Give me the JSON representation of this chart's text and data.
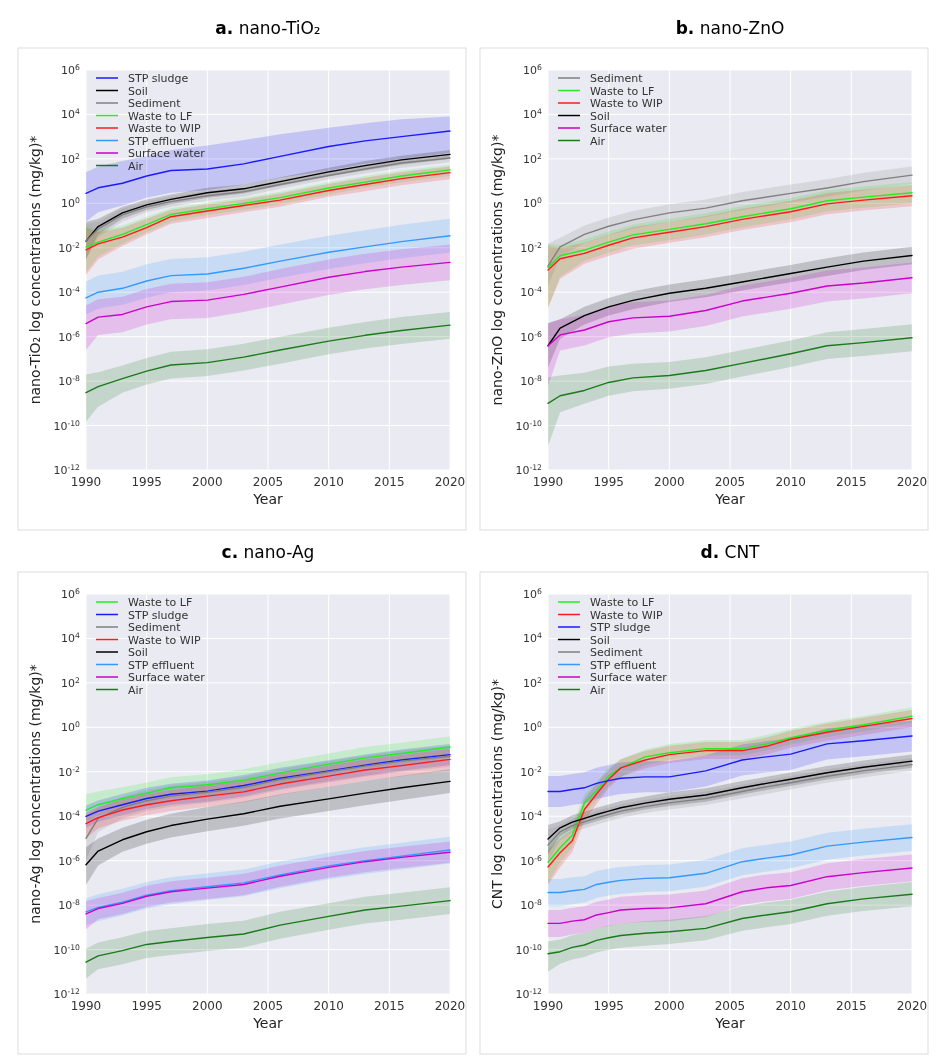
{
  "chart_data": [
    {
      "type": "line",
      "title": "a. nano-TiO₂",
      "xlabel": "Year",
      "ylabel": "nano-TiO₂  log concentrations (mg/kg)*",
      "log": true,
      "grid": true,
      "legend": "top left",
      "xlim": [
        1990,
        2020
      ],
      "xticks": [
        1990,
        1995,
        2000,
        2005,
        2010,
        2015,
        2020
      ],
      "ylim": [
        1e-12,
        1000000.0
      ],
      "yticks": [
        {
          "value": 1e-12,
          "label": "10$^{-12}$"
        },
        {
          "value": 1e-10,
          "label": "10$^{-10}$"
        },
        {
          "value": 1e-08,
          "label": "10$^{-8}$"
        },
        {
          "value": 1e-06,
          "label": "10$^{-6}$"
        },
        {
          "value": 0.0001,
          "label": "10$^{-4}$"
        },
        {
          "value": 0.01,
          "label": "10$^{-2}$"
        },
        {
          "value": 1,
          "label": "10$^{0}$"
        },
        {
          "value": 100,
          "label": "10$^{2}$"
        },
        {
          "value": 10000.0,
          "label": "10$^{4}$"
        },
        {
          "value": 1000000.0,
          "label": "10$^{6}$"
        }
      ],
      "x": [
        1990,
        1991,
        1993,
        1995,
        1997,
        2000,
        2003,
        2006,
        2010,
        2013,
        2016,
        2020
      ],
      "series": [
        {
          "name": "STP sludge",
          "color": "#1a1aff",
          "values": [
            2.8,
            5,
            8,
            17,
            30,
            35,
            60,
            130,
            360,
            650,
            1000,
            1800
          ],
          "lower": [
            0.15,
            0.4,
            0.8,
            1.8,
            3,
            4,
            7,
            14,
            30,
            60,
            100,
            190
          ],
          "upper": [
            25,
            45,
            80,
            130,
            250,
            400,
            700,
            1300,
            2500,
            4000,
            6000,
            8000
          ]
        },
        {
          "name": "Soil",
          "color": "#000000",
          "values": [
            0.02,
            0.09,
            0.37,
            0.85,
            1.5,
            3,
            4.5,
            9.5,
            26,
            50,
            90,
            160
          ],
          "lower": [
            0.003,
            0.04,
            0.2,
            0.5,
            0.9,
            1.8,
            2.8,
            6,
            16,
            30,
            55,
            100
          ],
          "upper": [
            0.15,
            0.2,
            0.7,
            1.5,
            2.5,
            5,
            7,
            15,
            40,
            80,
            140,
            250
          ]
        },
        {
          "name": "Sediment",
          "color": "#808080",
          "values": [
            0.02,
            0.07,
            0.3,
            0.7,
            1.2,
            2.2,
            3.3,
            7,
            18,
            35,
            65,
            110
          ],
          "lower": [
            0.003,
            0.03,
            0.15,
            0.4,
            0.7,
            1.3,
            2,
            4.5,
            12,
            22,
            40,
            70
          ],
          "upper": [
            0.12,
            0.15,
            0.6,
            1.2,
            2,
            3.5,
            5,
            11,
            28,
            55,
            100,
            170
          ]
        },
        {
          "name": "Waste to LF",
          "color": "#22ee22",
          "values": [
            0.011,
            0.018,
            0.04,
            0.11,
            0.32,
            0.57,
            1,
            1.8,
            4.9,
            9,
            17,
            32
          ],
          "lower": [
            0.0008,
            0.004,
            0.015,
            0.05,
            0.15,
            0.3,
            0.5,
            0.9,
            2.5,
            5,
            9,
            17
          ],
          "upper": [
            0.1,
            0.06,
            0.1,
            0.25,
            0.6,
            1.1,
            1.8,
            3.3,
            9,
            17,
            30,
            55
          ]
        },
        {
          "name": "Waste to WIP",
          "color": "#ff1a1a",
          "values": [
            0.008,
            0.015,
            0.03,
            0.08,
            0.25,
            0.45,
            0.8,
            1.4,
            3.8,
            7,
            13,
            24
          ],
          "lower": [
            0.0006,
            0.003,
            0.012,
            0.04,
            0.12,
            0.22,
            0.4,
            0.7,
            2,
            3.5,
            6.5,
            12
          ],
          "upper": [
            0.08,
            0.05,
            0.08,
            0.2,
            0.5,
            0.9,
            1.5,
            2.8,
            7.5,
            14,
            25,
            45
          ]
        },
        {
          "name": "STP effluent",
          "color": "#3399ff",
          "values": [
            5.5e-05,
            0.0001,
            0.00015,
            0.00032,
            0.00056,
            0.00066,
            0.0012,
            0.0025,
            0.0063,
            0.011,
            0.019,
            0.035
          ],
          "lower": [
            1e-05,
            1.8e-05,
            2.7e-05,
            5.7e-05,
            0.0001,
            0.00012,
            0.00021,
            0.00045,
            0.0011,
            0.002,
            0.0034,
            0.006
          ],
          "upper": [
            0.0003,
            0.00056,
            0.00084,
            0.0018,
            0.0031,
            0.0037,
            0.0067,
            0.014,
            0.035,
            0.062,
            0.11,
            0.2
          ]
        },
        {
          "name": "Surface water",
          "color": "#cc00cc",
          "values": [
            3.9e-06,
            7.6e-06,
            1e-05,
            2.2e-05,
            3.8e-05,
            4.4e-05,
            8e-05,
            0.00017,
            0.00047,
            0.00085,
            0.00135,
            0.0022
          ],
          "lower": [
            2.5e-07,
            1.2e-06,
            1.6e-06,
            3.5e-06,
            6e-06,
            7e-06,
            1.3e-05,
            2.7e-05,
            7.5e-05,
            0.000135,
            0.00021,
            0.00035
          ],
          "upper": [
            2.5e-05,
            4.8e-05,
            6.3e-05,
            0.00014,
            0.00024,
            0.00028,
            0.0005,
            0.0011,
            0.003,
            0.0054,
            0.0085,
            0.014
          ]
        },
        {
          "name": "Air",
          "color": "#1a7a1a",
          "values": [
            3e-09,
            5.6e-09,
            1.3e-08,
            2.8e-08,
            5.3e-08,
            6.8e-08,
            1.2e-07,
            2.5e-07,
            6.3e-07,
            1.15e-06,
            1.9e-06,
            3.3e-06
          ],
          "lower": [
            1.5e-10,
            7e-10,
            3e-09,
            7e-09,
            1.3e-08,
            1.7e-08,
            3e-08,
            6e-08,
            1.6e-07,
            2.9e-07,
            4.7e-07,
            8e-07
          ],
          "upper": [
            2e-08,
            2.5e-08,
            5e-08,
            1.1e-07,
            2.1e-07,
            2.7e-07,
            4.8e-07,
            1e-06,
            2.5e-06,
            4.6e-06,
            7.6e-06,
            1.3e-05
          ]
        }
      ]
    },
    {
      "type": "line",
      "title": "b. nano-ZnO",
      "xlabel": "Year",
      "ylabel": "nano-ZnO log concentrations (mg/kg)*",
      "log": true,
      "grid": true,
      "legend": "top left",
      "xlim": [
        1990,
        2020
      ],
      "xticks": [
        1990,
        1995,
        2000,
        2005,
        2010,
        2015,
        2020
      ],
      "ylim": [
        1e-12,
        1000000.0
      ],
      "yticks": [
        {
          "value": 1e-12,
          "label": "10$^{-12}$"
        },
        {
          "value": 1e-10,
          "label": "10$^{-10}$"
        },
        {
          "value": 1e-08,
          "label": "10$^{-8}$"
        },
        {
          "value": 1e-06,
          "label": "10$^{-6}$"
        },
        {
          "value": 0.0001,
          "label": "10$^{-4}$"
        },
        {
          "value": 0.01,
          "label": "10$^{-2}$"
        },
        {
          "value": 1,
          "label": "10$^{0}$"
        },
        {
          "value": 100,
          "label": "10$^{2}$"
        },
        {
          "value": 10000.0,
          "label": "10$^{4}$"
        },
        {
          "value": 1000000.0,
          "label": "10$^{6}$"
        }
      ],
      "x": [
        1990,
        1991,
        1993,
        1995,
        1997,
        2000,
        2003,
        2006,
        2010,
        2013,
        2016,
        2020
      ],
      "series": [
        {
          "name": "Sediment",
          "color": "#808080",
          "values": [
            0.0015,
            0.011,
            0.04,
            0.093,
            0.18,
            0.37,
            0.61,
            1.3,
            2.8,
            4.9,
            9.5,
            18.6
          ],
          "lower": [
            0.0002,
            0.004,
            0.016,
            0.037,
            0.072,
            0.15,
            0.24,
            0.5,
            1.1,
            2,
            3.8,
            7.5
          ],
          "upper": [
            0.015,
            0.028,
            0.1,
            0.23,
            0.45,
            0.9,
            1.5,
            3.2,
            7,
            12,
            24,
            45
          ]
        },
        {
          "name": "Waste to LF",
          "color": "#22ee22",
          "values": [
            0.0013,
            0.0044,
            0.0079,
            0.018,
            0.038,
            0.067,
            0.12,
            0.25,
            0.57,
            1.3,
            1.9,
            3
          ],
          "lower": [
            2e-05,
            0.0005,
            0.0026,
            0.006,
            0.013,
            0.022,
            0.04,
            0.083,
            0.19,
            0.43,
            0.63,
            1
          ],
          "upper": [
            0.015,
            0.013,
            0.024,
            0.054,
            0.11,
            0.2,
            0.36,
            0.75,
            1.7,
            3.9,
            5.7,
            9
          ]
        },
        {
          "name": "Waste to WIP",
          "color": "#ff1a1a",
          "values": [
            0.001,
            0.0032,
            0.0056,
            0.013,
            0.028,
            0.05,
            0.09,
            0.19,
            0.42,
            0.95,
            1.4,
            2.2
          ],
          "lower": [
            2e-05,
            0.0004,
            0.0019,
            0.0043,
            0.009,
            0.017,
            0.03,
            0.063,
            0.14,
            0.32,
            0.47,
            0.73
          ],
          "upper": [
            0.012,
            0.01,
            0.017,
            0.039,
            0.084,
            0.15,
            0.27,
            0.57,
            1.3,
            2.9,
            4.2,
            6.6
          ]
        },
        {
          "name": "Soil",
          "color": "#000000",
          "values": [
            3.9e-07,
            2.4e-06,
            8.9e-06,
            2.2e-05,
            4.3e-05,
            9e-05,
            0.00015,
            0.00029,
            0.0007,
            0.00135,
            0.0025,
            0.0045
          ],
          "lower": [
            4e-08,
            8e-07,
            3.5e-06,
            9e-06,
            1.7e-05,
            3.6e-05,
            6e-05,
            0.00012,
            0.00028,
            0.00054,
            0.001,
            0.0018
          ],
          "upper": [
            4e-06,
            6e-06,
            2.2e-05,
            5.5e-05,
            0.00011,
            0.00022,
            0.00038,
            0.00072,
            0.0017,
            0.0034,
            0.0062,
            0.011
          ]
        },
        {
          "name": "Surface water",
          "color": "#cc00cc",
          "values": [
            3.9e-07,
            1.2e-06,
            2e-06,
            4.7e-06,
            7e-06,
            8.3e-06,
            1.5e-05,
            4e-05,
            9e-05,
            0.00019,
            0.00026,
            0.00045
          ],
          "lower": [
            6e-09,
            2.4e-07,
            4e-07,
            9.4e-07,
            1.4e-06,
            1.7e-06,
            3e-06,
            8e-06,
            1.8e-05,
            3.8e-05,
            5.2e-05,
            9e-05
          ],
          "upper": [
            4e-06,
            6e-06,
            1e-05,
            2.4e-05,
            3.5e-05,
            4.2e-05,
            7.5e-05,
            0.0002,
            0.00045,
            0.00095,
            0.0013,
            0.0022
          ]
        },
        {
          "name": "Air",
          "color": "#1a7a1a",
          "values": [
            1e-09,
            2.2e-09,
            3.8e-09,
            8.7e-09,
            1.4e-08,
            1.8e-08,
            3e-08,
            6.3e-08,
            1.7e-07,
            3.9e-07,
            5.4e-07,
            8.9e-07
          ],
          "lower": [
            1.2e-11,
            4e-10,
            9.5e-10,
            2.2e-09,
            3.5e-09,
            4.5e-09,
            7.5e-09,
            1.6e-08,
            4.3e-08,
            1e-07,
            1.35e-07,
            2.2e-07
          ],
          "upper": [
            1.5e-08,
            1.8e-08,
            2.4e-08,
            4.5e-08,
            6e-08,
            7.2e-08,
            1.2e-07,
            2.5e-07,
            6.8e-07,
            1.6e-06,
            2.2e-06,
            3.6e-06
          ]
        }
      ]
    },
    {
      "type": "line",
      "title": "c. nano-Ag",
      "xlabel": "Year",
      "ylabel": "nano-Ag log concentrations (mg/kg)*",
      "log": true,
      "grid": true,
      "legend": "top left",
      "xlim": [
        1990,
        2020
      ],
      "xticks": [
        1990,
        1995,
        2000,
        2005,
        2010,
        2015,
        2020
      ],
      "ylim": [
        1e-12,
        1000000.0
      ],
      "yticks": [
        {
          "value": 1e-12,
          "label": "10$^{-12}$"
        },
        {
          "value": 1e-10,
          "label": "10$^{-10}$"
        },
        {
          "value": 1e-08,
          "label": "10$^{-8}$"
        },
        {
          "value": 1e-06,
          "label": "10$^{-6}$"
        },
        {
          "value": 0.0001,
          "label": "10$^{-4}$"
        },
        {
          "value": 0.01,
          "label": "10$^{-2}$"
        },
        {
          "value": 1,
          "label": "10$^{0}$"
        },
        {
          "value": 100,
          "label": "10$^{2}$"
        },
        {
          "value": 10000.0,
          "label": "10$^{4}$"
        },
        {
          "value": 1000000.0,
          "label": "10$^{6}$"
        }
      ],
      "x": [
        1990,
        1991,
        1993,
        1995,
        1997,
        2000,
        2003,
        2006,
        2010,
        2013,
        2016,
        2020
      ],
      "series": [
        {
          "name": "Waste to LF",
          "color": "#22ee22",
          "values": [
            0.00019,
            0.00033,
            0.00063,
            0.0011,
            0.0019,
            0.0026,
            0.0042,
            0.0089,
            0.022,
            0.042,
            0.066,
            0.13
          ],
          "lower": [
            6e-05,
            0.00011,
            0.00021,
            0.00037,
            0.00063,
            0.00087,
            0.0014,
            0.003,
            0.0073,
            0.014,
            0.022,
            0.043
          ],
          "upper": [
            0.001,
            0.0013,
            0.002,
            0.0033,
            0.0057,
            0.0078,
            0.013,
            0.027,
            0.066,
            0.13,
            0.2,
            0.39
          ]
        },
        {
          "name": "STP sludge",
          "color": "#1a1aff",
          "values": [
            9.8e-05,
            0.00017,
            0.00033,
            0.00063,
            0.00098,
            0.00135,
            0.0024,
            0.0051,
            0.011,
            0.02,
            0.034,
            0.059
          ],
          "lower": [
            3e-05,
            5.7e-05,
            0.00011,
            0.00021,
            0.00033,
            0.00045,
            0.0008,
            0.0017,
            0.0037,
            0.0067,
            0.011,
            0.02
          ],
          "upper": [
            0.0003,
            0.00051,
            0.001,
            0.0019,
            0.0029,
            0.004,
            0.0072,
            0.015,
            0.033,
            0.06,
            0.1,
            0.18
          ]
        },
        {
          "name": "Sediment",
          "color": "#808080",
          "values": [
            1e-05,
            8e-05,
            0.00025,
            0.0005,
            0.0008,
            0.0012,
            0.002,
            0.0045,
            0.01,
            0.018,
            0.03,
            0.05
          ],
          "lower": [
            1e-06,
            2e-05,
            8e-05,
            0.00017,
            0.00027,
            0.0004,
            0.00067,
            0.0015,
            0.0033,
            0.006,
            0.01,
            0.017
          ],
          "upper": [
            0.0001,
            0.00024,
            0.00075,
            0.0015,
            0.0024,
            0.0036,
            0.006,
            0.013,
            0.03,
            0.054,
            0.09,
            0.15
          ]
        },
        {
          "name": "Waste to WIP",
          "color": "#ff1a1a",
          "values": [
            4.6e-05,
            8.7e-05,
            0.00019,
            0.00033,
            0.0005,
            0.0008,
            0.00125,
            0.0028,
            0.0064,
            0.012,
            0.019,
            0.036
          ],
          "lower": [
            1e-05,
            2.9e-05,
            6.3e-05,
            0.00011,
            0.00017,
            0.00027,
            0.00042,
            0.00093,
            0.0021,
            0.004,
            0.0063,
            0.012
          ],
          "upper": [
            0.00014,
            0.00026,
            0.00057,
            0.001,
            0.0015,
            0.0024,
            0.0038,
            0.0084,
            0.019,
            0.036,
            0.057,
            0.11
          ]
        },
        {
          "name": "Soil",
          "color": "#000000",
          "values": [
            6.6e-07,
            2.7e-06,
            8.7e-06,
            2e-05,
            3.8e-05,
            7.4e-05,
            0.00013,
            0.00028,
            0.0006,
            0.0011,
            0.0019,
            0.0037
          ],
          "lower": [
            8e-08,
            6e-07,
            2.5e-06,
            5.7e-06,
            1.1e-05,
            2.1e-05,
            3.7e-05,
            8e-05,
            0.00017,
            0.00031,
            0.00054,
            0.0011
          ],
          "upper": [
            4e-06,
            1e-05,
            3e-05,
            7e-05,
            0.00013,
            0.00026,
            0.00046,
            0.00098,
            0.0021,
            0.0039,
            0.0067,
            0.013
          ]
        },
        {
          "name": "STP effluent",
          "color": "#3399ff",
          "values": [
            5e-09,
            7.8e-09,
            1.35e-08,
            2.8e-08,
            4.4e-08,
            6.7e-08,
            1e-07,
            2.3e-07,
            5.8e-07,
            1e-06,
            1.6e-06,
            3e-06
          ],
          "lower": [
            1.25e-09,
            1.9e-09,
            3.4e-09,
            7e-09,
            1.1e-08,
            1.7e-08,
            2.5e-08,
            5.7e-08,
            1.45e-07,
            2.5e-07,
            4e-07,
            7.5e-07
          ],
          "upper": [
            2e-08,
            3.1e-08,
            5.4e-08,
            1.1e-07,
            1.8e-07,
            2.7e-07,
            4e-07,
            9.2e-07,
            2.3e-06,
            4e-06,
            6.4e-06,
            1.2e-05
          ]
        },
        {
          "name": "Surface water",
          "color": "#cc00cc",
          "values": [
            4e-09,
            7e-09,
            1.2e-08,
            2.5e-08,
            4e-08,
            5.8e-08,
            8.5e-08,
            2e-07,
            5e-07,
            9e-07,
            1.4e-06,
            2.4e-06
          ],
          "lower": [
            8e-10,
            2.3e-09,
            4e-09,
            8.3e-09,
            1.3e-08,
            1.9e-08,
            2.8e-08,
            6.7e-08,
            1.7e-07,
            3e-07,
            4.7e-07,
            8e-07
          ],
          "upper": [
            1.5e-08,
            2.1e-08,
            3.6e-08,
            7.5e-08,
            1.2e-07,
            1.7e-07,
            2.6e-07,
            6e-07,
            1.5e-06,
            2.7e-06,
            4.2e-06,
            7.2e-06
          ]
        },
        {
          "name": "Air",
          "color": "#1a7a1a",
          "values": [
            2.7e-11,
            5.2e-11,
            8.9e-11,
            1.7e-10,
            2.3e-10,
            3.5e-10,
            5e-10,
            1.26e-09,
            3.1e-09,
            6e-09,
            9e-09,
            1.6e-08
          ],
          "lower": [
            5e-12,
            1.3e-11,
            2.2e-11,
            4.2e-11,
            5.7e-11,
            8.7e-11,
            1.25e-10,
            3.1e-10,
            7.7e-10,
            1.5e-09,
            2.2e-09,
            4e-09
          ],
          "upper": [
            1.1e-10,
            2.1e-10,
            3.6e-10,
            6.8e-10,
            9.2e-10,
            1.4e-09,
            2e-09,
            5e-09,
            1.2e-08,
            2.4e-08,
            3.6e-08,
            6.4e-08
          ]
        }
      ]
    },
    {
      "type": "line",
      "title": "d. CNT",
      "xlabel": "Year",
      "ylabel": "CNT  log concentrations (mg/kg)*",
      "log": true,
      "grid": true,
      "legend": "top left",
      "xlim": [
        1990,
        2020
      ],
      "xticks": [
        1990,
        1995,
        2000,
        2005,
        2010,
        2015,
        2020
      ],
      "ylim": [
        1e-12,
        1000000.0
      ],
      "yticks": [
        {
          "value": 1e-12,
          "label": "10$^{-12}$"
        },
        {
          "value": 1e-10,
          "label": "10$^{-10}$"
        },
        {
          "value": 1e-08,
          "label": "10$^{-8}$"
        },
        {
          "value": 1e-06,
          "label": "10$^{-6}$"
        },
        {
          "value": 0.0001,
          "label": "10$^{-4}$"
        },
        {
          "value": 0.01,
          "label": "10$^{-2}$"
        },
        {
          "value": 1,
          "label": "10$^{0}$"
        },
        {
          "value": 100,
          "label": "10$^{2}$"
        },
        {
          "value": 10000.0,
          "label": "10$^{4}$"
        },
        {
          "value": 1000000.0,
          "label": "10$^{6}$"
        }
      ],
      "x": [
        1990,
        1991,
        1992,
        1993,
        1994,
        1995,
        1996,
        1998,
        2000,
        2003,
        2006,
        2008,
        2010,
        2013,
        2016,
        2020
      ],
      "series": [
        {
          "name": "Waste to LF",
          "color": "#22ee22",
          "values": [
            8.5e-07,
            3.8e-06,
            1.4e-05,
            0.00039,
            0.0014,
            0.0065,
            0.015,
            0.047,
            0.072,
            0.11,
            0.11,
            0.18,
            0.34,
            0.74,
            1.3,
            3.2
          ],
          "lower": [
            1e-07,
            8e-07,
            4e-06,
            0.00012,
            0.0005,
            0.0025,
            0.006,
            0.019,
            0.035,
            0.055,
            0.055,
            0.09,
            0.17,
            0.37,
            0.65,
            1.6
          ],
          "upper": [
            4e-06,
            1.5e-05,
            4e-05,
            0.001,
            0.0035,
            0.016,
            0.037,
            0.1,
            0.18,
            0.27,
            0.27,
            0.45,
            0.85,
            1.8,
            3.2,
            8
          ]
        },
        {
          "name": "Waste to WIP",
          "color": "#ff1a1a",
          "values": [
            5.2e-07,
            2.3e-06,
            7.9e-06,
            0.0002,
            0.001,
            0.0046,
            0.015,
            0.034,
            0.059,
            0.09,
            0.09,
            0.14,
            0.29,
            0.6,
            1.1,
            2.5
          ],
          "lower": [
            8e-08,
            5e-07,
            2.5e-06,
            6e-05,
            0.00035,
            0.0018,
            0.006,
            0.014,
            0.025,
            0.038,
            0.038,
            0.06,
            0.12,
            0.25,
            0.45,
            1
          ],
          "upper": [
            3e-06,
            1e-05,
            2.5e-05,
            0.0006,
            0.003,
            0.012,
            0.037,
            0.085,
            0.15,
            0.22,
            0.22,
            0.35,
            0.7,
            1.5,
            2.7,
            6
          ]
        },
        {
          "name": "STP sludge",
          "color": "#1a1aff",
          "values": [
            0.0013,
            0.0013,
            0.0016,
            0.0019,
            0.003,
            0.004,
            0.0051,
            0.0059,
            0.0059,
            0.011,
            0.034,
            0.047,
            0.062,
            0.18,
            0.25,
            0.41
          ],
          "lower": [
            0.00026,
            0.00026,
            0.00032,
            0.00038,
            0.0006,
            0.0008,
            0.001,
            0.0012,
            0.0012,
            0.0022,
            0.0068,
            0.0094,
            0.012,
            0.036,
            0.05,
            0.082
          ],
          "upper": [
            0.0065,
            0.0065,
            0.008,
            0.0095,
            0.015,
            0.02,
            0.026,
            0.03,
            0.03,
            0.055,
            0.17,
            0.24,
            0.31,
            0.9,
            1.25,
            2
          ]
        },
        {
          "name": "Soil",
          "color": "#000000",
          "values": [
            9.5e-06,
            3e-05,
            5.4e-05,
            8e-05,
            0.00012,
            0.00017,
            0.00024,
            0.00039,
            0.00058,
            0.0009,
            0.0019,
            0.003,
            0.0046,
            0.009,
            0.016,
            0.03
          ],
          "lower": [
            2e-06,
            1.3e-05,
            2.7e-05,
            4e-05,
            6e-05,
            8.5e-05,
            0.00012,
            0.0002,
            0.00029,
            0.00045,
            0.00095,
            0.0015,
            0.0023,
            0.0045,
            0.008,
            0.015
          ],
          "upper": [
            4e-05,
            6e-05,
            0.00011,
            0.00016,
            0.00024,
            0.00034,
            0.00048,
            0.00078,
            0.0012,
            0.0018,
            0.0038,
            0.006,
            0.0092,
            0.018,
            0.032,
            0.06
          ]
        },
        {
          "name": "Sediment",
          "color": "#808080",
          "values": [
            5e-06,
            2e-05,
            3.8e-05,
            5.6e-05,
            8.4e-05,
            0.00012,
            0.00017,
            0.00027,
            0.0004,
            0.00063,
            0.0013,
            0.0021,
            0.0032,
            0.0063,
            0.011,
            0.021
          ],
          "lower": [
            1e-06,
            8e-06,
            1.9e-05,
            2.8e-05,
            4.2e-05,
            6e-05,
            8.5e-05,
            0.00014,
            0.0002,
            0.00032,
            0.00065,
            0.001,
            0.0016,
            0.0032,
            0.0055,
            0.011
          ],
          "upper": [
            2.5e-05,
            4e-05,
            7.6e-05,
            0.00011,
            0.00017,
            0.00024,
            0.00034,
            0.00054,
            0.0008,
            0.0013,
            0.0026,
            0.0042,
            0.0064,
            0.013,
            0.022,
            0.042
          ]
        },
        {
          "name": "STP effluent",
          "color": "#3399ff",
          "values": [
            3.7e-08,
            3.7e-08,
            4.4e-08,
            5.1e-08,
            8.5e-08,
            1.07e-07,
            1.3e-07,
            1.6e-07,
            1.7e-07,
            2.7e-07,
            9e-07,
            1.3e-06,
            1.8e-06,
            4.5e-06,
            6.8e-06,
            1.1e-05
          ],
          "lower": [
            9e-09,
            9e-09,
            1.1e-08,
            1.3e-08,
            2.1e-08,
            2.7e-08,
            3.2e-08,
            4e-08,
            4.2e-08,
            6.7e-08,
            2.2e-07,
            3.2e-07,
            4.5e-07,
            1.1e-06,
            1.7e-06,
            2.7e-06
          ],
          "upper": [
            1.5e-07,
            1.5e-07,
            1.8e-07,
            2e-07,
            3.4e-07,
            4.3e-07,
            5.2e-07,
            6.4e-07,
            6.8e-07,
            1.1e-06,
            3.6e-06,
            5.2e-06,
            7.2e-06,
            1.8e-05,
            2.7e-05,
            4.4e-05
          ]
        },
        {
          "name": "Surface water",
          "color": "#cc00cc",
          "values": [
            1.5e-09,
            1.5e-09,
            1.9e-09,
            2.2e-09,
            3.6e-09,
            4.6e-09,
            6e-09,
            7e-09,
            7.5e-09,
            1.15e-08,
            4e-08,
            6e-08,
            7.6e-08,
            1.9e-07,
            2.9e-07,
            4.7e-07
          ],
          "lower": [
            3.7e-10,
            3.7e-10,
            4.7e-10,
            5.5e-10,
            9e-10,
            1.15e-09,
            1.5e-09,
            1.75e-09,
            1.9e-09,
            2.9e-09,
            1e-08,
            1.5e-08,
            1.9e-08,
            4.7e-08,
            7.2e-08,
            1.2e-07
          ],
          "upper": [
            6e-09,
            6e-09,
            7.6e-09,
            8.8e-09,
            1.4e-08,
            1.8e-08,
            2.4e-08,
            2.8e-08,
            3e-08,
            4.6e-08,
            1.6e-07,
            2.4e-07,
            3e-07,
            7.6e-07,
            1.2e-06,
            1.9e-06
          ]
        },
        {
          "name": "Air",
          "color": "#1a7a1a",
          "values": [
            6.5e-11,
            8e-11,
            1.25e-10,
            1.6e-10,
            2.6e-10,
            3.4e-10,
            4.3e-10,
            5.4e-10,
            6.3e-10,
            9e-10,
            2.5e-09,
            3.6e-09,
            5e-09,
            1.15e-08,
            1.9e-08,
            3.1e-08
          ],
          "lower": [
            1e-11,
            2.3e-11,
            3.6e-11,
            4.6e-11,
            7.4e-11,
            9.7e-11,
            1.2e-10,
            1.5e-10,
            1.8e-10,
            2.6e-10,
            7e-10,
            1e-09,
            1.4e-09,
            3.3e-09,
            5.4e-09,
            9e-09
          ],
          "upper": [
            2.3e-10,
            2.8e-10,
            4.4e-10,
            5.6e-10,
            9e-10,
            1.2e-09,
            1.5e-09,
            1.9e-09,
            2.2e-09,
            3.2e-09,
            8.8e-09,
            1.3e-08,
            1.75e-08,
            4e-08,
            6.6e-08,
            1.1e-07
          ]
        }
      ]
    }
  ]
}
